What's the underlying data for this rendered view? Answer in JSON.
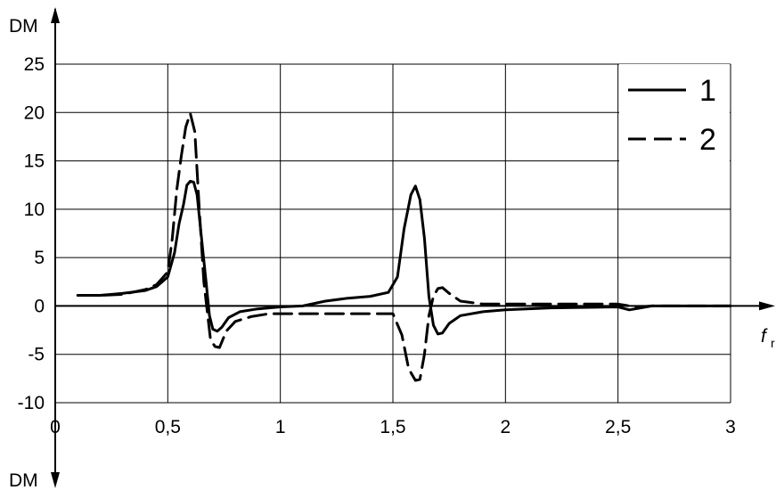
{
  "chart_data": {
    "type": "line",
    "ylabel": "DM",
    "ylabel_bottom": "DM",
    "xlabel": "f",
    "xlabel_subscript": "r",
    "xlim": [
      0,
      3
    ],
    "ylim": [
      -10,
      25
    ],
    "grid": true,
    "legend_position": "top-right",
    "x_ticks": [
      {
        "value": 0,
        "label": "0"
      },
      {
        "value": 0.5,
        "label": "0,5"
      },
      {
        "value": 1,
        "label": "1"
      },
      {
        "value": 1.5,
        "label": "1,5"
      },
      {
        "value": 2,
        "label": "2"
      },
      {
        "value": 2.5,
        "label": "2,5"
      },
      {
        "value": 3,
        "label": "3"
      }
    ],
    "y_ticks": [
      {
        "value": 25,
        "label": "25"
      },
      {
        "value": 20,
        "label": "20"
      },
      {
        "value": 15,
        "label": "15"
      },
      {
        "value": 10,
        "label": "10"
      },
      {
        "value": 5,
        "label": "5"
      },
      {
        "value": 0,
        "label": "0"
      },
      {
        "value": -5,
        "label": "-5"
      },
      {
        "value": -10,
        "label": "-10"
      }
    ],
    "series": [
      {
        "name": "1",
        "style": "solid",
        "points": [
          [
            0.1,
            1.1
          ],
          [
            0.2,
            1.1
          ],
          [
            0.3,
            1.3
          ],
          [
            0.4,
            1.6
          ],
          [
            0.45,
            2.0
          ],
          [
            0.5,
            3.0
          ],
          [
            0.53,
            5.5
          ],
          [
            0.55,
            8.5
          ],
          [
            0.57,
            10.5
          ],
          [
            0.585,
            12.5
          ],
          [
            0.6,
            12.9
          ],
          [
            0.615,
            12.8
          ],
          [
            0.63,
            11.5
          ],
          [
            0.65,
            7.0
          ],
          [
            0.67,
            2.5
          ],
          [
            0.685,
            -1.0
          ],
          [
            0.7,
            -2.4
          ],
          [
            0.72,
            -2.6
          ],
          [
            0.74,
            -2.2
          ],
          [
            0.77,
            -1.2
          ],
          [
            0.82,
            -0.6
          ],
          [
            0.9,
            -0.3
          ],
          [
            1.0,
            -0.1
          ],
          [
            1.1,
            0.0
          ],
          [
            1.2,
            0.5
          ],
          [
            1.3,
            0.8
          ],
          [
            1.4,
            1.0
          ],
          [
            1.48,
            1.4
          ],
          [
            1.52,
            3.0
          ],
          [
            1.55,
            8.0
          ],
          [
            1.58,
            11.5
          ],
          [
            1.6,
            12.4
          ],
          [
            1.62,
            11.0
          ],
          [
            1.64,
            7.0
          ],
          [
            1.66,
            1.0
          ],
          [
            1.68,
            -2.0
          ],
          [
            1.7,
            -2.9
          ],
          [
            1.72,
            -2.8
          ],
          [
            1.75,
            -1.8
          ],
          [
            1.8,
            -1.0
          ],
          [
            1.9,
            -0.6
          ],
          [
            2.0,
            -0.4
          ],
          [
            2.2,
            -0.2
          ],
          [
            2.5,
            -0.1
          ],
          [
            2.55,
            -0.4
          ],
          [
            2.6,
            -0.2
          ],
          [
            2.65,
            0.0
          ],
          [
            3.0,
            0.0
          ]
        ]
      },
      {
        "name": "2",
        "style": "dashed",
        "points": [
          [
            0.1,
            1.1
          ],
          [
            0.2,
            1.1
          ],
          [
            0.3,
            1.2
          ],
          [
            0.4,
            1.7
          ],
          [
            0.45,
            2.2
          ],
          [
            0.5,
            3.5
          ],
          [
            0.52,
            7.0
          ],
          [
            0.54,
            12.0
          ],
          [
            0.56,
            15.5
          ],
          [
            0.58,
            18.5
          ],
          [
            0.6,
            19.9
          ],
          [
            0.62,
            18.0
          ],
          [
            0.64,
            10.0
          ],
          [
            0.66,
            2.5
          ],
          [
            0.68,
            -1.5
          ],
          [
            0.69,
            -3.5
          ],
          [
            0.71,
            -4.2
          ],
          [
            0.73,
            -4.3
          ],
          [
            0.76,
            -2.6
          ],
          [
            0.8,
            -1.6
          ],
          [
            0.87,
            -1.1
          ],
          [
            0.95,
            -0.8
          ],
          [
            1.1,
            -0.8
          ],
          [
            1.3,
            -0.8
          ],
          [
            1.5,
            -0.8
          ],
          [
            1.54,
            -3.0
          ],
          [
            1.57,
            -6.5
          ],
          [
            1.6,
            -7.7
          ],
          [
            1.62,
            -7.6
          ],
          [
            1.64,
            -5.0
          ],
          [
            1.66,
            -1.0
          ],
          [
            1.68,
            1.0
          ],
          [
            1.7,
            1.8
          ],
          [
            1.72,
            1.9
          ],
          [
            1.75,
            1.3
          ],
          [
            1.8,
            0.5
          ],
          [
            1.9,
            0.2
          ],
          [
            2.0,
            0.2
          ],
          [
            2.2,
            0.2
          ],
          [
            2.4,
            0.2
          ],
          [
            2.5,
            0.2
          ],
          [
            2.55,
            0.0
          ],
          [
            2.6,
            -0.1
          ],
          [
            2.65,
            0.0
          ],
          [
            3.0,
            0.0
          ]
        ]
      }
    ]
  },
  "legend": [
    {
      "label": "1",
      "style": "solid"
    },
    {
      "label": "2",
      "style": "dashed"
    }
  ]
}
